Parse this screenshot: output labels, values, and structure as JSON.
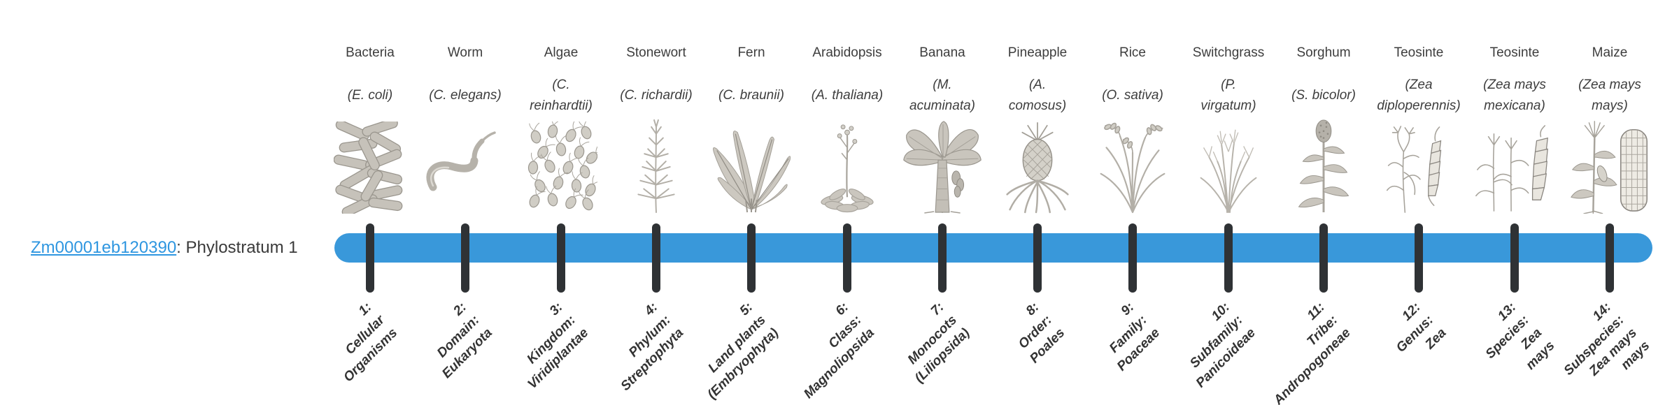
{
  "gene": {
    "id": "Zm00001eb120390",
    "suffix": ": Phylostratum 1",
    "link_color": "#2e96e0"
  },
  "timeline": {
    "bar_color": "#3998da",
    "tick_color": "#2f3235",
    "num_strata": 14
  },
  "strata": [
    {
      "organism": "Bacteria",
      "scientific": "(E. coli)",
      "icon": "bacteria-icon",
      "rank_label": "1:\nCellular\nOrganisms"
    },
    {
      "organism": "Worm",
      "scientific": "(C. elegans)",
      "icon": "worm-icon",
      "rank_label": "2:\nDomain:\nEukaryota"
    },
    {
      "organism": "Algae",
      "scientific": "(C.\nreinhardtii)",
      "icon": "algae-icon",
      "rank_label": "3:\nKingdom:\nViridiplantae"
    },
    {
      "organism": "Stonewort",
      "scientific": "(C. richardii)",
      "icon": "stonewort-icon",
      "rank_label": "4:\nPhylum:\nStreptophyta"
    },
    {
      "organism": "Fern",
      "scientific": "(C. braunii)",
      "icon": "fern-icon",
      "rank_label": "5:\nLand plants\n(Embryophyta)"
    },
    {
      "organism": "Arabidopsis",
      "scientific": "(A. thaliana)",
      "icon": "arabidopsis-icon",
      "rank_label": "6:\nClass:\nMagnoliopsida"
    },
    {
      "organism": "Banana",
      "scientific": "(M.\nacuminata)",
      "icon": "banana-icon",
      "rank_label": "7:\nMonocots\n(Liliopsida)"
    },
    {
      "organism": "Pineapple",
      "scientific": "(A.\ncomosus)",
      "icon": "pineapple-icon",
      "rank_label": "8:\nOrder:\nPoales"
    },
    {
      "organism": "Rice",
      "scientific": "(O. sativa)",
      "icon": "rice-icon",
      "rank_label": "9:\nFamily:\nPoaceae"
    },
    {
      "organism": "Switchgrass",
      "scientific": "(P.\nvirgatum)",
      "icon": "switchgrass-icon",
      "rank_label": "10:\nSubfamily:\nPanicoideae"
    },
    {
      "organism": "Sorghum",
      "scientific": "(S. bicolor)",
      "icon": "sorghum-icon",
      "rank_label": "11:\nTribe:\nAndropogoneae"
    },
    {
      "organism": "Teosinte",
      "scientific": "(Zea\ndiploperennis)",
      "icon": "teosinte-diploperennis-icon",
      "rank_label": "12:\nGenus:\nZea"
    },
    {
      "organism": "Teosinte",
      "scientific": "(Zea mays\nmexicana)",
      "icon": "teosinte-mexicana-icon",
      "rank_label": "13:\nSpecies:\nZea\nmays"
    },
    {
      "organism": "Maize",
      "scientific": "(Zea mays\nmays)",
      "icon": "maize-icon",
      "rank_label": "14:\nSubspecies:\nZea mays\nmays"
    }
  ]
}
